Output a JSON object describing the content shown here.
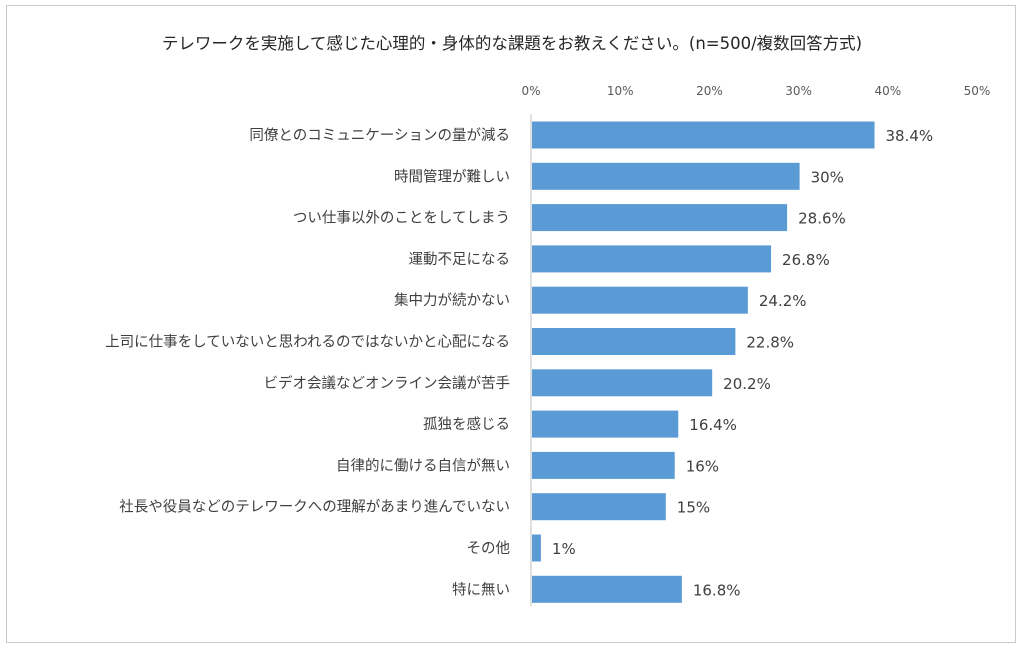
{
  "chart_data": {
    "type": "bar",
    "orientation": "horizontal",
    "title": "テレワークを実施して感じた心理的・身体的な課題をお教えください。(n=500/複数回答方式)",
    "categories": [
      "同僚とのコミュニケーションの量が減る",
      "時間管理が難しい",
      "つい仕事以外のことをしてしまう",
      "運動不足になる",
      "集中力が続かない",
      "上司に仕事をしていないと思われるのではないかと心配になる",
      "ビデオ会議などオンライン会議が苦手",
      "孤独を感じる",
      "自律的に働ける自信が無い",
      "社長や役員などのテレワークへの理解があまり進んでいない",
      "その他",
      "特に無い"
    ],
    "values": [
      38.4,
      30,
      28.6,
      26.8,
      24.2,
      22.8,
      20.2,
      16.4,
      16,
      15,
      1,
      16.8
    ],
    "value_labels": [
      "38.4%",
      "30%",
      "28.6%",
      "26.8%",
      "24.2%",
      "22.8%",
      "20.2%",
      "16.4%",
      "16%",
      "15%",
      "1%",
      "16.8%"
    ],
    "xlim": [
      0,
      50
    ],
    "xticks": [
      "0%",
      "10%",
      "20%",
      "30%",
      "40%",
      "50%"
    ],
    "xlabel": "",
    "ylabel": "",
    "grid": false,
    "legend": "none",
    "bar_color": "#5b9bd5"
  }
}
